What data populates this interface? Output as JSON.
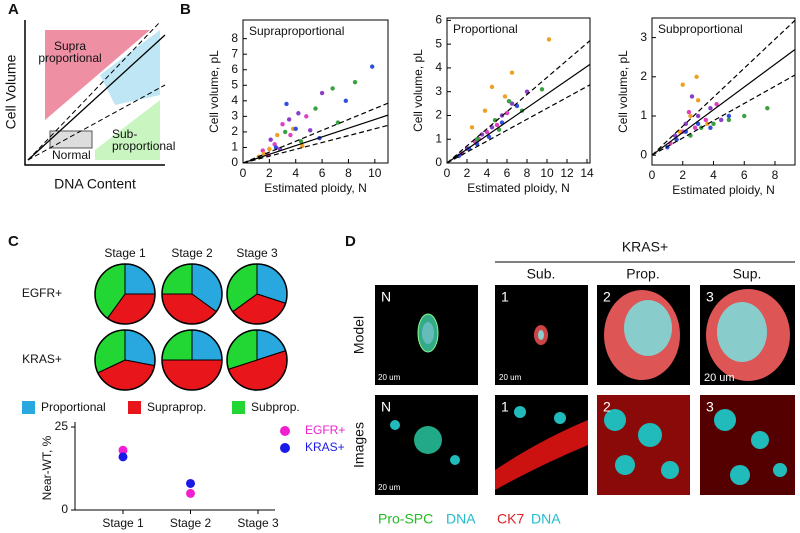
{
  "panel_labels": [
    "A",
    "B",
    "C",
    "D"
  ],
  "schematic": {
    "y_label": "Cell Volume",
    "x_label": "DNA Content",
    "supra": [
      "Supra",
      "proportional"
    ],
    "normal": "Normal",
    "sub": [
      "Sub-",
      "proportional"
    ]
  },
  "chart_data": [
    {
      "type": "scatter",
      "title": "Supraproportional",
      "x_label": "Estimated ploidy, N",
      "y_label": "Cell volume, pL",
      "xlim": [
        0,
        11
      ],
      "ylim": [
        0,
        9.2
      ],
      "xticks": [
        0,
        2,
        4,
        6,
        8,
        10
      ],
      "yticks": [
        0,
        1,
        2,
        3,
        4,
        5,
        6,
        7,
        8
      ],
      "lines": [
        {
          "slope": 0.28,
          "style": "solid"
        },
        {
          "slope": 0.35,
          "style": "dashed"
        },
        {
          "slope": 0.22,
          "style": "dashed"
        }
      ],
      "series": [
        {
          "color": "#8b3fc8",
          "x": [
            2.1,
            3.5,
            4.2,
            6.0,
            2.8,
            5.1
          ],
          "y": [
            1.5,
            2.8,
            3.2,
            4.5,
            0.9,
            2.1
          ]
        },
        {
          "color": "#e040c0",
          "x": [
            1.5,
            2.4,
            3.0,
            4.8,
            1.9,
            3.6
          ],
          "y": [
            0.8,
            1.2,
            2.5,
            3.0,
            0.5,
            1.8
          ]
        },
        {
          "color": "#3aa040",
          "x": [
            3.2,
            5.5,
            6.8,
            8.5,
            4.4,
            7.2
          ],
          "y": [
            2.0,
            3.5,
            4.8,
            5.2,
            1.4,
            2.6
          ]
        },
        {
          "color": "#f0a020",
          "x": [
            1.2,
            2.0,
            2.6,
            3.8,
            1.6,
            4.5
          ],
          "y": [
            0.4,
            0.9,
            1.8,
            2.2,
            0.6,
            1.1
          ]
        },
        {
          "color": "#3050e0",
          "x": [
            2.5,
            4.0,
            5.8,
            9.8,
            3.3,
            7.8
          ],
          "y": [
            1.0,
            2.2,
            1.6,
            6.2,
            3.8,
            4.0
          ]
        }
      ]
    },
    {
      "type": "scatter",
      "title": "Proportional",
      "x_label": "Estimated ploidy, N",
      "y_label": "Cell volume, pL",
      "xlim": [
        0,
        14.3
      ],
      "ylim": [
        0,
        6.1
      ],
      "xticks": [
        0,
        2,
        4,
        6,
        8,
        10,
        12,
        14
      ],
      "yticks": [
        0,
        1,
        2,
        3,
        4,
        5,
        6
      ],
      "lines": [
        {
          "slope": 0.29,
          "style": "solid"
        },
        {
          "slope": 0.36,
          "style": "dashed"
        },
        {
          "slope": 0.23,
          "style": "dashed"
        }
      ],
      "series": [
        {
          "color": "#8b3fc8",
          "x": [
            2.0,
            3.5,
            4.5,
            5.5,
            6.5,
            8.0
          ],
          "y": [
            0.6,
            1.2,
            1.5,
            2.0,
            2.5,
            3.0
          ]
        },
        {
          "color": "#e040c0",
          "x": [
            1.5,
            2.8,
            4.0,
            5.0,
            6.0,
            3.2
          ],
          "y": [
            0.4,
            0.9,
            1.3,
            1.6,
            2.1,
            1.0
          ]
        },
        {
          "color": "#3aa040",
          "x": [
            3.0,
            4.8,
            6.2,
            7.5,
            9.5,
            5.2
          ],
          "y": [
            1.0,
            1.8,
            2.6,
            2.2,
            3.1,
            1.4
          ]
        },
        {
          "color": "#f0a020",
          "x": [
            2.5,
            3.8,
            4.5,
            5.8,
            6.5,
            10.2
          ],
          "y": [
            1.5,
            2.2,
            3.2,
            2.8,
            3.8,
            5.2
          ]
        },
        {
          "color": "#3050e0",
          "x": [
            1.2,
            2.2,
            3.0,
            4.2,
            5.5,
            7.0
          ],
          "y": [
            0.3,
            0.6,
            0.8,
            1.1,
            1.7,
            2.4
          ]
        }
      ]
    },
    {
      "type": "scatter",
      "title": "Subproportional",
      "x_label": "Estimated ploidy, N",
      "y_label": "Cell volume, pL",
      "xlim": [
        0,
        9.3
      ],
      "ylim": [
        -0.25,
        3.5
      ],
      "xticks": [
        0,
        2,
        4,
        6,
        8
      ],
      "yticks": [
        0,
        1,
        2,
        3
      ],
      "lines": [
        {
          "slope": 0.29,
          "style": "solid"
        },
        {
          "slope": 0.37,
          "style": "dashed"
        },
        {
          "slope": 0.22,
          "style": "dashed"
        }
      ],
      "series": [
        {
          "color": "#8b3fc8",
          "x": [
            1.5,
            2.2,
            3.0,
            3.8,
            4.5,
            2.6
          ],
          "y": [
            0.5,
            0.8,
            1.0,
            1.2,
            0.9,
            1.5
          ]
        },
        {
          "color": "#e040c0",
          "x": [
            1.2,
            2.0,
            2.8,
            3.5,
            2.4,
            4.2
          ],
          "y": [
            0.3,
            0.6,
            0.7,
            0.9,
            1.1,
            1.3
          ]
        },
        {
          "color": "#3aa040",
          "x": [
            2.5,
            3.2,
            4.0,
            5.0,
            6.0,
            7.5
          ],
          "y": [
            0.5,
            0.7,
            0.8,
            0.9,
            1.0,
            1.2
          ]
        },
        {
          "color": "#f0a020",
          "x": [
            1.8,
            2.5,
            3.0,
            2.0,
            3.6,
            2.9
          ],
          "y": [
            0.6,
            1.0,
            1.4,
            1.8,
            0.8,
            2.0
          ]
        },
        {
          "color": "#3050e0",
          "x": [
            1.0,
            1.6,
            2.2,
            3.0,
            3.8,
            5.0
          ],
          "y": [
            0.2,
            0.4,
            0.6,
            0.8,
            0.7,
            1.0
          ]
        }
      ]
    },
    {
      "type": "pie",
      "rows": [
        "EGFR+",
        "KRAS+"
      ],
      "columns": [
        "Stage 1",
        "Stage 2",
        "Stage 3"
      ],
      "categories": [
        "Proportional",
        "Supraprop.",
        "Subprop."
      ],
      "colors": [
        "#29a8e0",
        "#e8161b",
        "#22d633"
      ],
      "values": [
        [
          [
            25,
            35,
            40
          ],
          [
            35,
            40,
            25
          ],
          [
            30,
            35,
            35
          ]
        ],
        [
          [
            28,
            40,
            32
          ],
          [
            25,
            50,
            25
          ],
          [
            20,
            50,
            30
          ]
        ]
      ]
    },
    {
      "type": "dot",
      "y_label": "Near-WT, %",
      "categories": [
        "Stage 1",
        "Stage 2",
        "Stage 3"
      ],
      "ylim": [
        0,
        25
      ],
      "yticks": [
        0,
        25
      ],
      "series": [
        {
          "name": "EGFR+",
          "color": "#f020d0",
          "values": [
            18,
            5,
            null
          ]
        },
        {
          "name": "KRAS+",
          "color": "#1a1ae8",
          "values": [
            16,
            8,
            null
          ]
        }
      ]
    }
  ],
  "panel_d": {
    "group": "KRAS+",
    "columns": [
      "Sub.",
      "Prop.",
      "Sup."
    ],
    "rows": [
      "Model",
      "Images"
    ],
    "cell_labels": [
      "N",
      "1",
      "2",
      "3"
    ],
    "scale_bar": "20 um",
    "stain_left": [
      "Pro-SPC",
      "DNA"
    ],
    "stain_right": [
      "CK7",
      "DNA"
    ]
  }
}
